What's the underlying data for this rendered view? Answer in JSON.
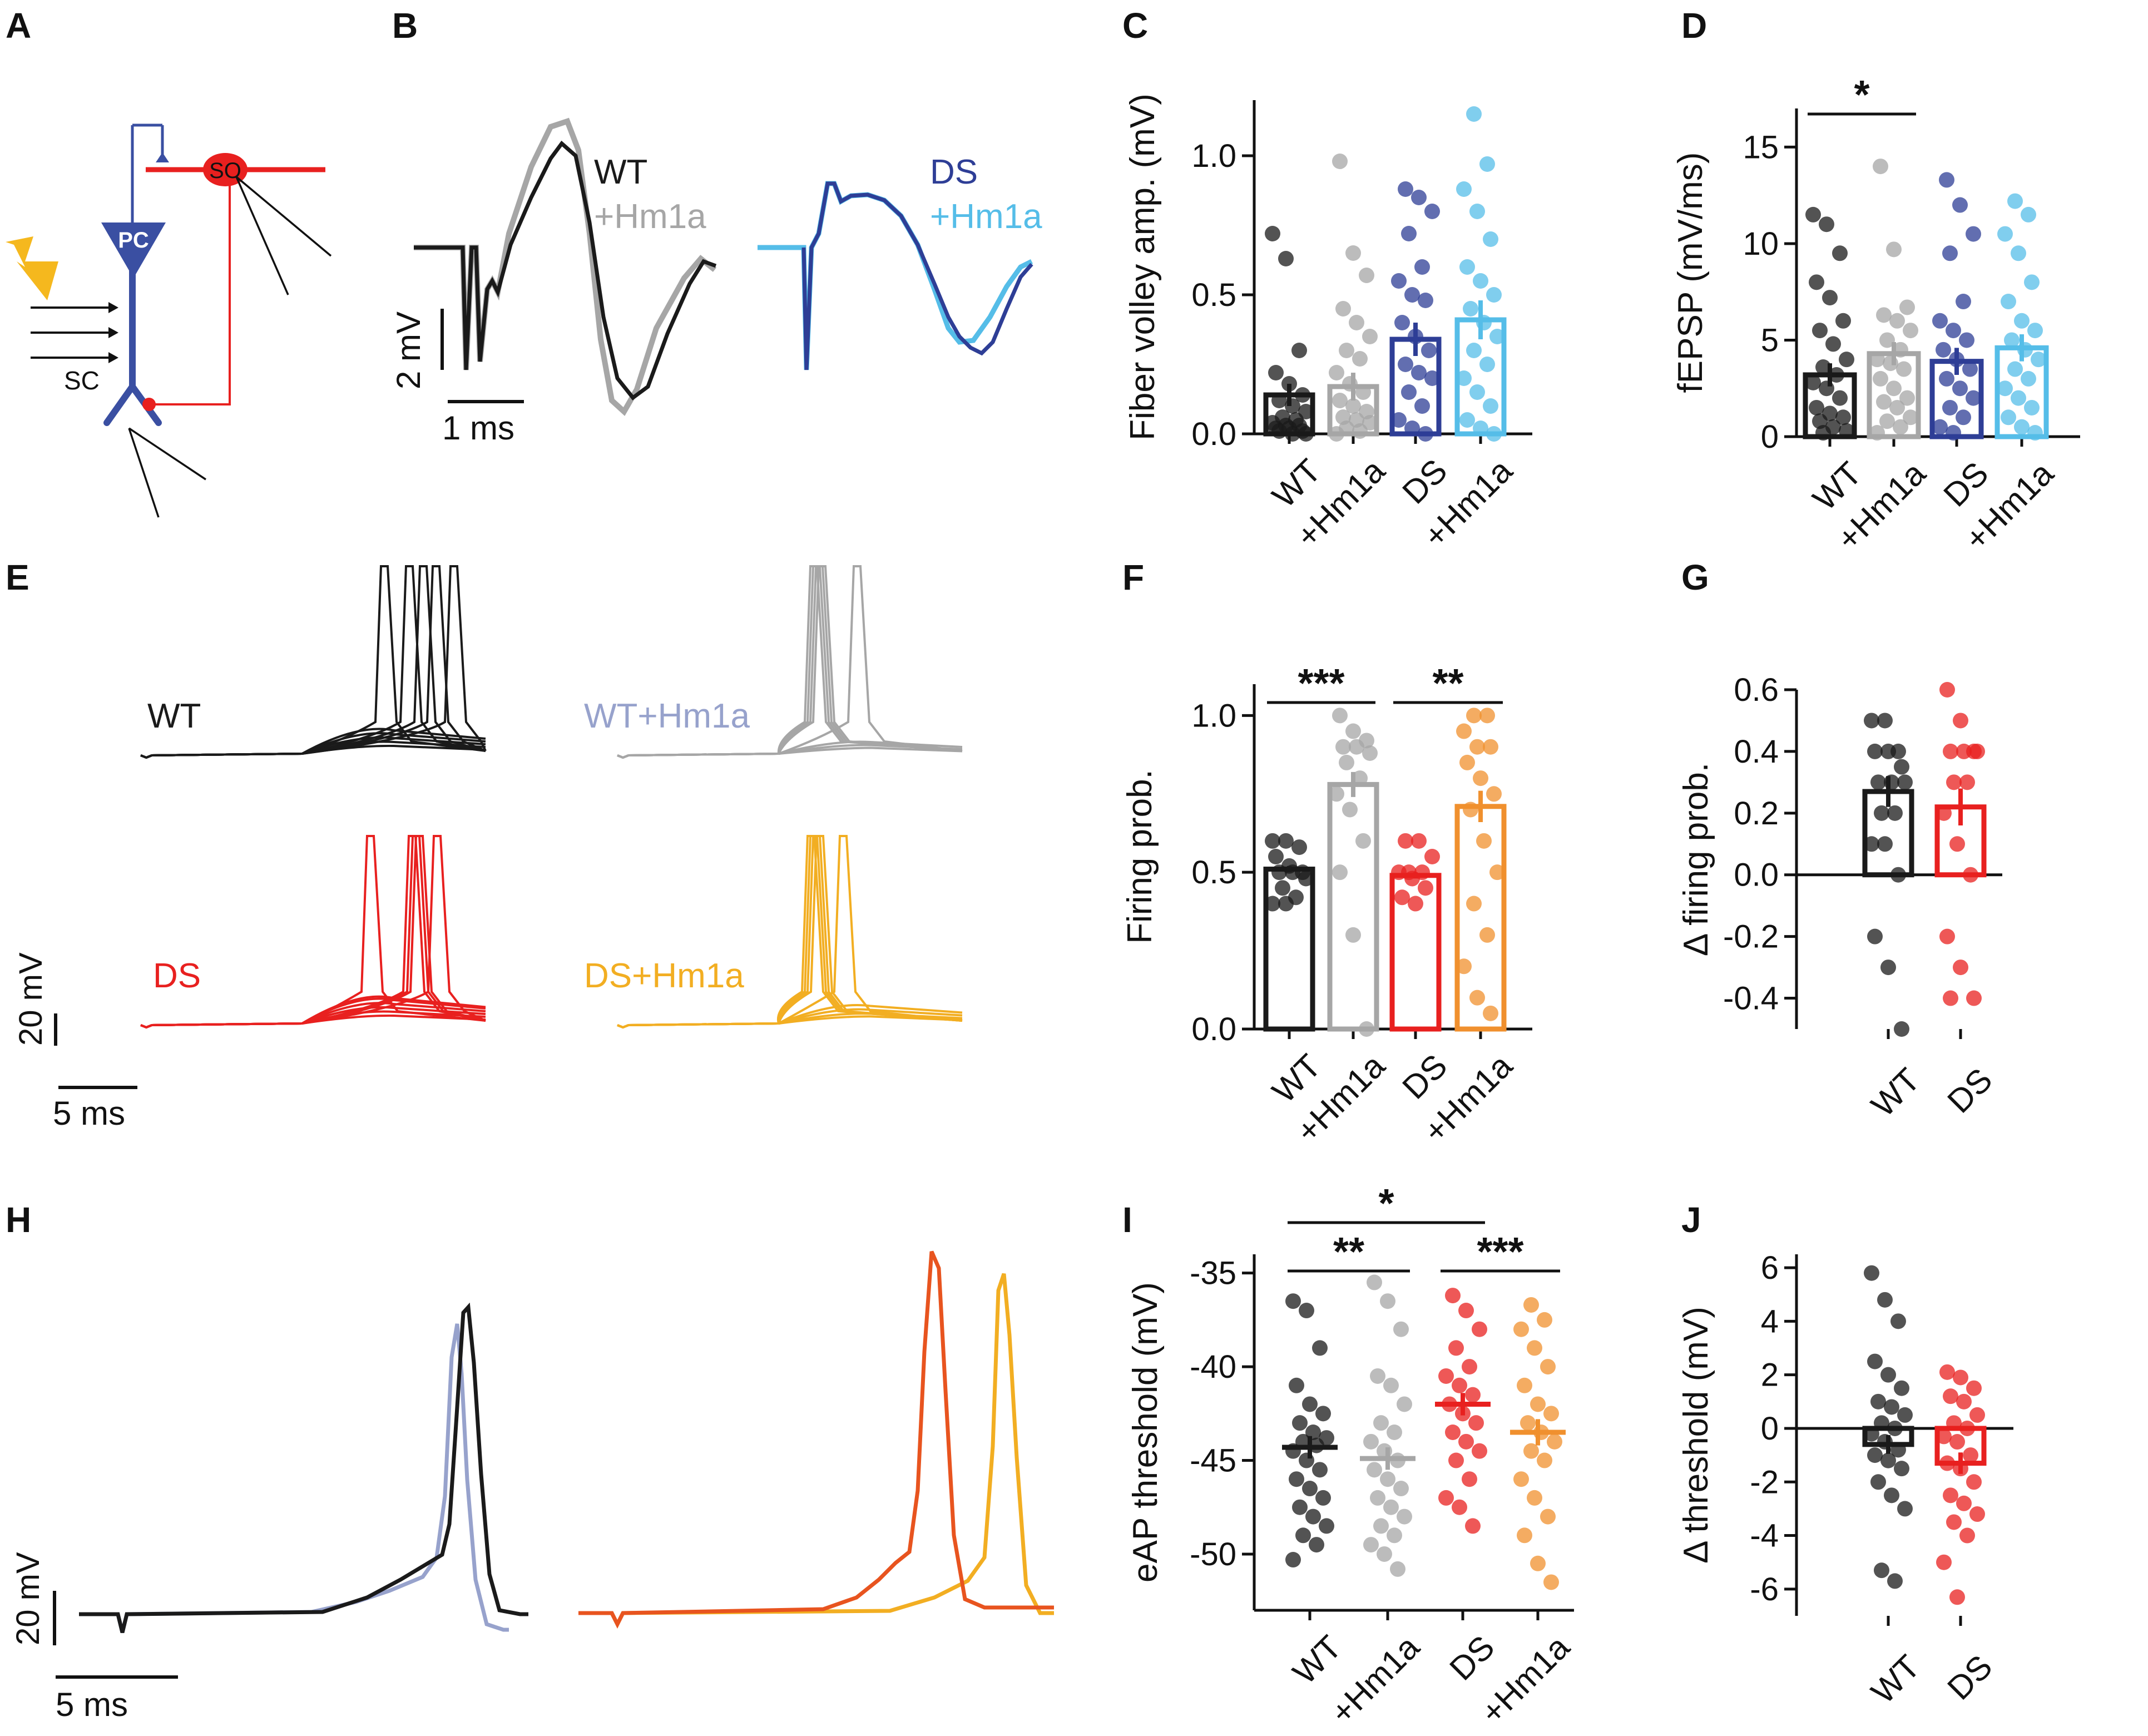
{
  "panel_letters": [
    "A",
    "B",
    "C",
    "D",
    "E",
    "F",
    "G",
    "H",
    "I",
    "J"
  ],
  "colors": {
    "wt": "#1a1a1a",
    "wt_hm1a": "#a6a6a6",
    "wt_hm1a_h": "#97a2cc",
    "ds_blue": "#2e3e96",
    "ds_hm1a_blue": "#55bde8",
    "ds_red": "#e8201f",
    "ds_hm1a_orange": "#f0902e",
    "ds_hm1a_yellow": "#f2ae22",
    "pc_blue": "#3a4fa2",
    "bolt": "#f5b81e"
  },
  "panelA": {
    "pc_label": "PC",
    "so_label": "SO",
    "sc_label": "SC"
  },
  "panelB": {
    "left_legend": [
      "WT",
      "+Hm1a"
    ],
    "right_legend": [
      "DS",
      "+Hm1a"
    ],
    "scale_v": "2 mV",
    "scale_t": "1 ms"
  },
  "panelE": {
    "labels": [
      "WT",
      "WT+Hm1a",
      "DS",
      "DS+Hm1a"
    ],
    "scale_v": "20 mV",
    "scale_t": "5 ms"
  },
  "panelH": {
    "scale_v": "20 mV",
    "scale_t": "5 ms"
  },
  "chart_data": [
    {
      "id": "C",
      "type": "bar",
      "ylabel": "Fiber volley amp. (mV)",
      "categories": [
        "WT",
        "+Hm1a",
        "DS",
        "+Hm1a"
      ],
      "values": [
        0.14,
        0.17,
        0.34,
        0.41
      ],
      "sem": [
        0.04,
        0.05,
        0.06,
        0.07
      ],
      "ylim": [
        0,
        1.2
      ],
      "yticks": [
        0.0,
        0.5,
        1.0
      ],
      "ytick_labels": [
        "0.0",
        "0.5",
        "1.0"
      ],
      "points": [
        [
          0.72,
          0.63,
          0.3,
          0.22,
          0.18,
          0.14,
          0.12,
          0.1,
          0.08,
          0.06,
          0.05,
          0.04,
          0.03,
          0.03,
          0.02,
          0.02,
          0.01,
          0.01,
          0.0,
          0.0
        ],
        [
          0.98,
          0.65,
          0.57,
          0.45,
          0.4,
          0.35,
          0.3,
          0.27,
          0.22,
          0.18,
          0.15,
          0.12,
          0.1,
          0.08,
          0.06,
          0.05,
          0.04,
          0.02,
          0.01,
          0.0
        ],
        [
          0.88,
          0.85,
          0.8,
          0.72,
          0.6,
          0.55,
          0.5,
          0.48,
          0.4,
          0.35,
          0.3,
          0.25,
          0.22,
          0.2,
          0.15,
          0.1,
          0.05,
          0.02,
          0.0
        ],
        [
          1.15,
          0.97,
          0.88,
          0.8,
          0.7,
          0.6,
          0.55,
          0.5,
          0.45,
          0.4,
          0.35,
          0.3,
          0.25,
          0.2,
          0.15,
          0.1,
          0.05,
          0.02,
          0.0
        ]
      ]
    },
    {
      "id": "D",
      "type": "bar",
      "ylabel": "fEPSP (mV/ms)",
      "categories": [
        "WT",
        "+Hm1a",
        "DS",
        "+Hm1a"
      ],
      "values": [
        3.2,
        4.3,
        3.9,
        4.6
      ],
      "sem": [
        0.6,
        0.6,
        0.7,
        0.7
      ],
      "ylim": [
        0,
        17
      ],
      "yticks": [
        0,
        5,
        10,
        15
      ],
      "ytick_labels": [
        "0",
        "5",
        "10",
        "15"
      ],
      "significance": [
        {
          "from": 0,
          "to": 1,
          "label": "*"
        }
      ],
      "points": [
        [
          11.5,
          11.0,
          9.5,
          8.0,
          7.2,
          6.0,
          5.5,
          4.8,
          4.0,
          3.6,
          3.2,
          2.8,
          2.5,
          2.0,
          1.5,
          1.2,
          1.0,
          0.8,
          0.5,
          0.3,
          0.2
        ],
        [
          14.0,
          9.7,
          6.7,
          6.3,
          6.0,
          5.5,
          5.0,
          4.5,
          4.0,
          3.8,
          3.5,
          3.0,
          2.5,
          2.0,
          1.8,
          1.5,
          1.0,
          0.8,
          0.5,
          0.2
        ],
        [
          13.3,
          12.0,
          10.5,
          9.5,
          7.0,
          6.0,
          5.5,
          5.0,
          4.5,
          4.0,
          3.5,
          3.0,
          2.5,
          2.0,
          1.5,
          1.0,
          0.5,
          0.2
        ],
        [
          12.2,
          11.5,
          10.5,
          9.5,
          8.0,
          7.0,
          6.0,
          5.5,
          5.0,
          4.5,
          4.0,
          3.5,
          3.0,
          2.5,
          2.0,
          1.5,
          1.0,
          0.5,
          0.2
        ]
      ]
    },
    {
      "id": "F",
      "type": "bar",
      "ylabel": "Firing prob.",
      "categories": [
        "WT",
        "+Hm1a",
        "DS",
        "+Hm1a"
      ],
      "values": [
        0.51,
        0.78,
        0.49,
        0.71
      ],
      "sem": [
        0.01,
        0.04,
        0.01,
        0.05
      ],
      "ylim": [
        0,
        1.1
      ],
      "yticks": [
        0.0,
        0.5,
        1.0
      ],
      "ytick_labels": [
        "0.0",
        "0.5",
        "1.0"
      ],
      "significance": [
        {
          "from": 0,
          "to": 1,
          "label": "***"
        },
        {
          "from": 2,
          "to": 3,
          "label": "**"
        }
      ],
      "points": [
        [
          0.6,
          0.6,
          0.58,
          0.55,
          0.52,
          0.5,
          0.5,
          0.5,
          0.48,
          0.45,
          0.42,
          0.4,
          0.4
        ],
        [
          1.0,
          0.95,
          0.92,
          0.9,
          0.9,
          0.88,
          0.85,
          0.8,
          0.75,
          0.7,
          0.6,
          0.5,
          0.3,
          0.0
        ],
        [
          0.6,
          0.6,
          0.55,
          0.5,
          0.5,
          0.5,
          0.48,
          0.45,
          0.42,
          0.4
        ],
        [
          1.0,
          1.0,
          0.95,
          0.9,
          0.9,
          0.85,
          0.8,
          0.75,
          0.7,
          0.6,
          0.5,
          0.4,
          0.3,
          0.2,
          0.1,
          0.05
        ]
      ]
    },
    {
      "id": "G",
      "type": "bar",
      "ylabel": "Δ firing prob.",
      "categories": [
        "WT",
        "DS"
      ],
      "values": [
        0.27,
        0.22
      ],
      "sem": [
        0.05,
        0.06
      ],
      "ylim": [
        -0.5,
        0.6
      ],
      "yticks": [
        -0.4,
        -0.2,
        0.0,
        0.2,
        0.4,
        0.6
      ],
      "ytick_labels": [
        "-0.4",
        "-0.2",
        "0.0",
        "0.2",
        "0.4",
        "0.6"
      ],
      "points": [
        [
          0.5,
          0.5,
          0.4,
          0.4,
          0.4,
          0.35,
          0.3,
          0.3,
          0.3,
          0.2,
          0.2,
          0.1,
          0.1,
          0.0,
          -0.2,
          -0.3,
          -0.5
        ],
        [
          0.6,
          0.5,
          0.4,
          0.4,
          0.4,
          0.4,
          0.3,
          0.3,
          0.2,
          0.1,
          0.0,
          -0.2,
          -0.3,
          -0.4,
          -0.4
        ]
      ]
    },
    {
      "id": "I",
      "type": "scatter",
      "ylabel": "eAP threshold (mV)",
      "categories": [
        "WT",
        "+Hm1a",
        "DS",
        "+Hm1a"
      ],
      "values": [
        -44.3,
        -44.9,
        -42.0,
        -43.5
      ],
      "sem": [
        0.6,
        0.6,
        0.6,
        0.7
      ],
      "ylim": [
        -53,
        -34
      ],
      "yticks": [
        -50,
        -45,
        -40,
        -35
      ],
      "ytick_labels": [
        "-50",
        "-45",
        "-40",
        "-35"
      ],
      "significance": [
        {
          "from": 0,
          "to": 1,
          "label": "**"
        },
        {
          "from": 2,
          "to": 3,
          "label": "***"
        },
        {
          "from": 0,
          "to": 2,
          "label": "*"
        }
      ],
      "points": [
        [
          -36.5,
          -37.0,
          -39.0,
          -41.0,
          -42.0,
          -42.5,
          -43.0,
          -43.5,
          -43.8,
          -44.0,
          -44.2,
          -44.5,
          -45.0,
          -45.5,
          -46.0,
          -46.5,
          -47.0,
          -47.5,
          -48.0,
          -48.5,
          -49.0,
          -49.5,
          -50.3
        ],
        [
          -35.5,
          -36.5,
          -38.0,
          -40.5,
          -41.0,
          -42.0,
          -43.0,
          -43.5,
          -44.0,
          -44.5,
          -45.0,
          -45.5,
          -46.0,
          -46.5,
          -47.0,
          -47.5,
          -48.0,
          -48.5,
          -49.0,
          -49.5,
          -50.0,
          -50.8
        ],
        [
          -36.2,
          -37.0,
          -38.0,
          -39.0,
          -40.0,
          -40.5,
          -41.0,
          -41.5,
          -42.0,
          -42.5,
          -43.0,
          -43.5,
          -44.0,
          -44.5,
          -45.0,
          -46.0,
          -47.0,
          -47.5,
          -48.5
        ],
        [
          -36.7,
          -37.5,
          -38.0,
          -39.0,
          -40.0,
          -41.0,
          -42.0,
          -42.5,
          -43.0,
          -43.5,
          -44.0,
          -44.5,
          -45.0,
          -46.0,
          -47.0,
          -48.0,
          -49.0,
          -50.5,
          -51.5
        ]
      ]
    },
    {
      "id": "J",
      "type": "bar",
      "ylabel": "Δ threshold (mV)",
      "categories": [
        "WT",
        "DS"
      ],
      "values": [
        -0.6,
        -1.3
      ],
      "sem": [
        0.35,
        0.4
      ],
      "ylim": [
        -7,
        6.5
      ],
      "yticks": [
        -6,
        -4,
        -2,
        0,
        2,
        4,
        6
      ],
      "ytick_labels": [
        "-6",
        "-4",
        "-2",
        "0",
        "2",
        "4",
        "6"
      ],
      "points": [
        [
          5.8,
          4.8,
          4.0,
          2.5,
          2.0,
          1.5,
          1.0,
          0.8,
          0.5,
          0.2,
          0.0,
          -0.2,
          -0.5,
          -0.8,
          -1.0,
          -1.2,
          -1.5,
          -2.0,
          -2.5,
          -3.0,
          -5.3,
          -5.7
        ],
        [
          2.1,
          1.9,
          1.5,
          1.2,
          1.0,
          0.5,
          0.2,
          0.0,
          -0.3,
          -0.5,
          -1.0,
          -1.3,
          -1.5,
          -2.0,
          -2.5,
          -2.8,
          -3.2,
          -3.5,
          -4.0,
          -5.0,
          -6.3
        ]
      ]
    }
  ]
}
